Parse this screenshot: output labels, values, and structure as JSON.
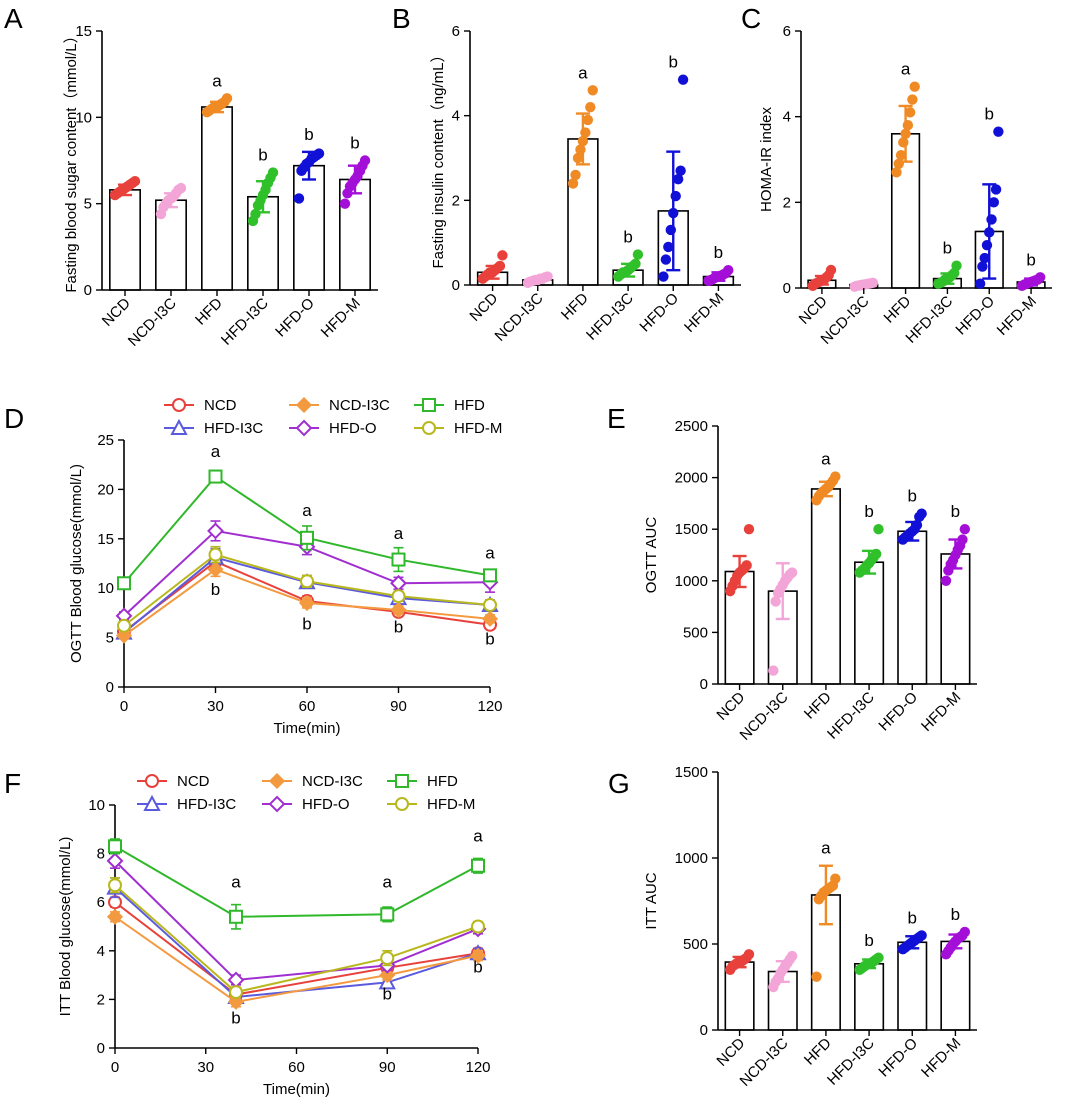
{
  "figure": {
    "group_colors": {
      "NCD": "#e8413c",
      "NCD-I3C": "#f3a5d8",
      "HFD": "#ef8a24",
      "HFD-I3C": "#2fc02a",
      "HFD-O": "#1010d6",
      "HFD-M": "#a40fd8"
    },
    "line_colors": {
      "NCD": "#e8413c",
      "NCD-I3C": "#f39a40",
      "HFD": "#2fb82a",
      "HFD-I3C": "#5a5ade",
      "HFD-O": "#a12ed0",
      "HFD-M": "#b8b81e"
    }
  },
  "chart_data": [
    {
      "panel": "A",
      "type": "bar",
      "ylabel": "Fasting blood sugar content（mmol/L）",
      "ylim": [
        0,
        15
      ],
      "yticks": [
        0,
        5,
        10,
        15
      ],
      "categories": [
        "NCD",
        "NCD-I3C",
        "HFD",
        "HFD-I3C",
        "HFD-O",
        "HFD-M"
      ],
      "values": [
        5.8,
        5.2,
        10.6,
        5.4,
        7.2,
        6.4
      ],
      "errors": [
        0.3,
        0.4,
        0.3,
        0.9,
        0.8,
        0.8
      ],
      "letters": [
        "",
        "",
        "a",
        "b",
        "b",
        "b"
      ],
      "points": [
        [
          5.5,
          5.6,
          5.7,
          5.8,
          5.9,
          6.0,
          6.1,
          6.2,
          6.3
        ],
        [
          4.4,
          4.8,
          5.0,
          5.2,
          5.3,
          5.4,
          5.6,
          5.8,
          5.9
        ],
        [
          10.3,
          10.4,
          10.5,
          10.6,
          10.6,
          10.7,
          10.8,
          10.9,
          11.1
        ],
        [
          4.0,
          4.4,
          4.9,
          5.2,
          5.5,
          5.8,
          6.2,
          6.5,
          6.8
        ],
        [
          5.3,
          6.9,
          7.1,
          7.3,
          7.4,
          7.6,
          7.7,
          7.8,
          7.9
        ],
        [
          5.0,
          5.6,
          6.0,
          6.2,
          6.4,
          6.6,
          6.9,
          7.2,
          7.5
        ]
      ]
    },
    {
      "panel": "B",
      "type": "bar",
      "ylabel": "Fasting insulin content（ng/mL）",
      "ylim": [
        0,
        6
      ],
      "yticks": [
        0,
        2,
        4,
        6
      ],
      "categories": [
        "NCD",
        "NCD-I3C",
        "HFD",
        "HFD-I3C",
        "HFD-O",
        "HFD-M"
      ],
      "values": [
        0.3,
        0.12,
        3.45,
        0.35,
        1.75,
        0.2
      ],
      "errors": [
        0.15,
        0.06,
        0.6,
        0.15,
        1.4,
        0.1
      ],
      "letters": [
        "",
        "",
        "a",
        "b",
        "b",
        "b"
      ],
      "points": [
        [
          0.15,
          0.2,
          0.25,
          0.3,
          0.3,
          0.35,
          0.4,
          0.45,
          0.7
        ],
        [
          0.05,
          0.08,
          0.1,
          0.12,
          0.12,
          0.15,
          0.15,
          0.18,
          0.2
        ],
        [
          2.4,
          2.6,
          3.0,
          3.2,
          3.4,
          3.6,
          3.9,
          4.2,
          4.6
        ],
        [
          0.2,
          0.25,
          0.3,
          0.3,
          0.35,
          0.4,
          0.45,
          0.5,
          0.72
        ],
        [
          0.2,
          0.6,
          0.9,
          1.3,
          1.7,
          2.1,
          2.5,
          2.7,
          4.85
        ],
        [
          0.1,
          0.12,
          0.15,
          0.18,
          0.2,
          0.22,
          0.25,
          0.28,
          0.35
        ]
      ]
    },
    {
      "panel": "C",
      "type": "bar",
      "ylabel": "HOMA-IR index",
      "ylim": [
        0,
        6
      ],
      "yticks": [
        0,
        2,
        4,
        6
      ],
      "categories": [
        "NCD",
        "NCD-I3C",
        "HFD",
        "HFD-I3C",
        "HFD-O",
        "HFD-M"
      ],
      "values": [
        0.18,
        0.08,
        3.6,
        0.22,
        1.32,
        0.14
      ],
      "errors": [
        0.1,
        0.04,
        0.65,
        0.12,
        1.1,
        0.08
      ],
      "letters": [
        "",
        "",
        "a",
        "b",
        "b",
        "b"
      ],
      "points": [
        [
          0.05,
          0.1,
          0.12,
          0.15,
          0.18,
          0.2,
          0.25,
          0.3,
          0.42
        ],
        [
          0.03,
          0.05,
          0.06,
          0.07,
          0.08,
          0.09,
          0.1,
          0.11,
          0.12
        ],
        [
          2.7,
          2.9,
          3.1,
          3.4,
          3.6,
          3.8,
          4.1,
          4.4,
          4.7
        ],
        [
          0.1,
          0.12,
          0.15,
          0.2,
          0.22,
          0.25,
          0.3,
          0.35,
          0.52
        ],
        [
          0.1,
          0.5,
          0.7,
          1.0,
          1.3,
          1.6,
          2.0,
          2.3,
          3.65
        ],
        [
          0.05,
          0.08,
          0.1,
          0.12,
          0.14,
          0.16,
          0.18,
          0.2,
          0.25
        ]
      ]
    },
    {
      "panel": "D",
      "type": "line",
      "xlabel": "Time(min)",
      "ylabel": "OGTT Blood glucose(mmol/L)",
      "x": [
        0,
        30,
        60,
        90,
        120
      ],
      "xlim": [
        0,
        120
      ],
      "ylim": [
        0,
        25
      ],
      "yticks": [
        0,
        5,
        10,
        15,
        20,
        25
      ],
      "series": [
        {
          "name": "NCD",
          "marker": "circle",
          "values": [
            5.6,
            12.7,
            8.7,
            7.6,
            6.3
          ],
          "errors": [
            0.3,
            0.8,
            0.5,
            0.4,
            0.3
          ]
        },
        {
          "name": "HFD-I3C",
          "marker": "triangle",
          "values": [
            5.5,
            13.1,
            10.6,
            9.0,
            8.3
          ],
          "errors": [
            0.3,
            0.9,
            0.6,
            0.5,
            0.5
          ]
        },
        {
          "name": "NCD-I3C",
          "marker": "diamond",
          "values": [
            5.2,
            11.9,
            8.5,
            7.8,
            6.9
          ],
          "errors": [
            0.3,
            0.7,
            0.5,
            0.4,
            0.4
          ]
        },
        {
          "name": "HFD-O",
          "marker": "diamond-open",
          "values": [
            7.2,
            15.8,
            14.2,
            10.5,
            10.6
          ],
          "errors": [
            0.4,
            1.0,
            0.8,
            0.6,
            1.0
          ]
        },
        {
          "name": "HFD",
          "marker": "square",
          "values": [
            10.5,
            21.3,
            15.1,
            12.9,
            11.3
          ],
          "errors": [
            0.4,
            0.6,
            1.2,
            1.2,
            0.6
          ]
        },
        {
          "name": "HFD-M",
          "marker": "circle",
          "values": [
            6.2,
            13.4,
            10.7,
            9.2,
            8.3
          ],
          "errors": [
            0.3,
            0.8,
            0.6,
            0.5,
            0.4
          ]
        }
      ],
      "legend": [
        "NCD",
        "NCD-I3C",
        "HFD",
        "HFD-I3C",
        "HFD-O",
        "HFD-M"
      ],
      "annotations": [
        {
          "x": 30,
          "y": 23.3,
          "text": "a"
        },
        {
          "x": 30,
          "y": 9.3,
          "text": "b"
        },
        {
          "x": 60,
          "y": 17.3,
          "text": "a"
        },
        {
          "x": 60,
          "y": 5.8,
          "text": "b"
        },
        {
          "x": 90,
          "y": 15.0,
          "text": "a"
        },
        {
          "x": 90,
          "y": 5.5,
          "text": "b"
        },
        {
          "x": 120,
          "y": 13.0,
          "text": "a"
        },
        {
          "x": 120,
          "y": 4.3,
          "text": "b"
        }
      ]
    },
    {
      "panel": "E",
      "type": "bar",
      "ylabel": "OGTT AUC",
      "ylim": [
        0,
        2500
      ],
      "yticks": [
        0,
        500,
        1000,
        1500,
        2000,
        2500
      ],
      "categories": [
        "NCD",
        "NCD-I3C",
        "HFD",
        "HFD-I3C",
        "HFD-O",
        "HFD-M"
      ],
      "values": [
        1090,
        900,
        1890,
        1180,
        1480,
        1260
      ],
      "errors": [
        150,
        270,
        70,
        110,
        90,
        140
      ],
      "letters": [
        "",
        "",
        "a",
        "b",
        "b",
        "b"
      ],
      "points": [
        [
          900,
          950,
          1000,
          1050,
          1080,
          1100,
          1120,
          1150,
          1500
        ],
        [
          130,
          800,
          880,
          920,
          960,
          1000,
          1030,
          1060,
          1080
        ],
        [
          1780,
          1820,
          1850,
          1870,
          1890,
          1910,
          1940,
          1970,
          2010
        ],
        [
          1080,
          1100,
          1120,
          1150,
          1170,
          1200,
          1230,
          1260,
          1500
        ],
        [
          1400,
          1420,
          1440,
          1460,
          1480,
          1500,
          1540,
          1620,
          1650
        ],
        [
          1000,
          1100,
          1160,
          1200,
          1250,
          1300,
          1340,
          1400,
          1500
        ]
      ]
    },
    {
      "panel": "F",
      "type": "line",
      "xlabel": "Time(min)",
      "ylabel": "ITT Blood glucose(mmol/L)",
      "x": [
        0,
        40,
        90,
        120
      ],
      "xlim": [
        0,
        120
      ],
      "xticks": [
        0,
        30,
        60,
        90,
        120
      ],
      "ylim": [
        0,
        10
      ],
      "yticks": [
        0,
        2,
        4,
        6,
        8,
        10
      ],
      "series": [
        {
          "name": "NCD",
          "marker": "circle",
          "values": [
            6.0,
            2.2,
            3.3,
            3.9
          ],
          "errors": [
            0.2,
            0.2,
            0.2,
            0.2
          ]
        },
        {
          "name": "HFD-I3C",
          "marker": "triangle",
          "values": [
            6.6,
            2.1,
            2.7,
            3.9
          ],
          "errors": [
            0.4,
            0.2,
            0.2,
            0.2
          ]
        },
        {
          "name": "NCD-I3C",
          "marker": "diamond",
          "values": [
            5.4,
            1.9,
            3.0,
            3.8
          ],
          "errors": [
            0.2,
            0.2,
            0.2,
            0.2
          ]
        },
        {
          "name": "HFD-O",
          "marker": "diamond-open",
          "values": [
            7.7,
            2.8,
            3.4,
            4.9
          ],
          "errors": [
            0.3,
            0.2,
            0.2,
            0.2
          ]
        },
        {
          "name": "HFD",
          "marker": "square",
          "values": [
            8.3,
            5.4,
            5.5,
            7.5
          ],
          "errors": [
            0.3,
            0.5,
            0.3,
            0.3
          ]
        },
        {
          "name": "HFD-M",
          "marker": "circle",
          "values": [
            6.7,
            2.3,
            3.7,
            5.0
          ],
          "errors": [
            0.3,
            0.2,
            0.3,
            0.2
          ]
        }
      ],
      "legend": [
        "NCD",
        "NCD-I3C",
        "HFD",
        "HFD-I3C",
        "HFD-O",
        "HFD-M"
      ],
      "annotations": [
        {
          "x": 40,
          "y": 6.6,
          "text": "a"
        },
        {
          "x": 40,
          "y": 1.0,
          "text": "b"
        },
        {
          "x": 90,
          "y": 6.6,
          "text": "a"
        },
        {
          "x": 90,
          "y": 2.0,
          "text": "b"
        },
        {
          "x": 120,
          "y": 8.5,
          "text": "a"
        },
        {
          "x": 120,
          "y": 3.1,
          "text": "b"
        }
      ]
    },
    {
      "panel": "G",
      "type": "bar",
      "ylabel": "ITT AUC",
      "ylim": [
        0,
        1500
      ],
      "yticks": [
        0,
        500,
        1000,
        1500
      ],
      "categories": [
        "NCD",
        "NCD-I3C",
        "HFD",
        "HFD-I3C",
        "HFD-O",
        "HFD-M"
      ],
      "values": [
        395,
        340,
        785,
        385,
        510,
        515
      ],
      "errors": [
        30,
        60,
        170,
        25,
        35,
        40
      ],
      "letters": [
        "",
        "",
        "a",
        "b",
        "b",
        "b"
      ],
      "points": [
        [
          350,
          370,
          380,
          390,
          395,
          400,
          410,
          420,
          440
        ],
        [
          250,
          280,
          300,
          330,
          350,
          370,
          390,
          410,
          430
        ],
        [
          310,
          760,
          780,
          800,
          810,
          820,
          830,
          840,
          880
        ],
        [
          350,
          360,
          370,
          380,
          385,
          390,
          400,
          410,
          420
        ],
        [
          470,
          480,
          490,
          500,
          510,
          520,
          530,
          540,
          550
        ],
        [
          440,
          460,
          480,
          500,
          515,
          530,
          540,
          550,
          570
        ]
      ]
    }
  ]
}
